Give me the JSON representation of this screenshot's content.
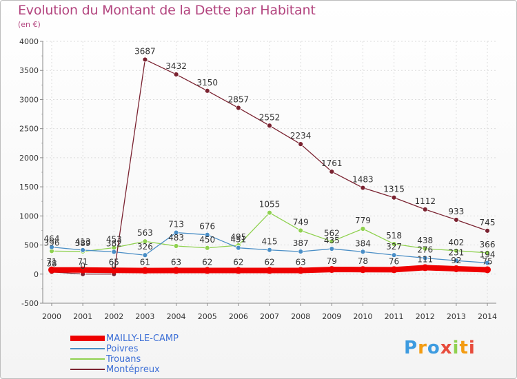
{
  "chart_data": {
    "type": "line",
    "title": "Evolution du Montant de la Dette par Habitant",
    "subtitle": "(en €)",
    "x": [
      "2000",
      "2001",
      "2002",
      "2003",
      "2004",
      "2005",
      "2006",
      "2007",
      "2008",
      "2009",
      "2010",
      "2011",
      "2012",
      "2013",
      "2014"
    ],
    "ylim": [
      -500,
      4000
    ],
    "yticks": [
      -500,
      0,
      500,
      1000,
      1500,
      2000,
      2500,
      3000,
      3500,
      4000
    ],
    "grid": true,
    "series": [
      {
        "name": "Trouans",
        "color": "#8fd14f",
        "width": 1.3,
        "values": [
          396,
          389,
          453,
          563,
          483,
          450,
          495,
          1055,
          749,
          562,
          779,
          518,
          438,
          402,
          366
        ],
        "labels": [
          "396",
          "389",
          "453",
          "563",
          "483",
          "450",
          "495",
          "1055",
          "749",
          "562",
          "779",
          "518",
          "438",
          "402",
          "366"
        ]
      },
      {
        "name": "Poivres",
        "color": "#4a8ec6",
        "width": 1.3,
        "values": [
          464,
          413,
          382,
          326,
          713,
          676,
          451,
          415,
          387,
          435,
          384,
          327,
          276,
          231,
          194
        ],
        "labels": [
          "464",
          "413",
          "382",
          "326",
          "713",
          "676",
          "451",
          "415",
          "387",
          "435",
          "384",
          "327",
          "276",
          "231",
          "194"
        ]
      },
      {
        "name": "Montépreux",
        "color": "#7a2230",
        "width": 1.3,
        "values": [
          38,
          0,
          0,
          3687,
          3432,
          3150,
          2857,
          2552,
          2234,
          1761,
          1483,
          1315,
          1112,
          933,
          745
        ],
        "labels": [
          "38",
          "0",
          "0",
          "3687",
          "3432",
          "3150",
          "2857",
          "2552",
          "2234",
          "1761",
          "1483",
          "1315",
          "1112",
          "933",
          "745"
        ]
      },
      {
        "name": "MAILLY-LE-CAMP",
        "color": "#ee0000",
        "width": 8,
        "values": [
          71,
          71,
          65,
          61,
          63,
          62,
          62,
          62,
          63,
          79,
          78,
          76,
          111,
          92,
          75
        ],
        "labels": [
          "71",
          "71",
          "65",
          "61",
          "63",
          "62",
          "62",
          "62",
          "63",
          "79",
          "78",
          "76",
          "111",
          "92",
          "75"
        ]
      }
    ]
  },
  "legend": [
    {
      "name": "MAILLY-LE-CAMP",
      "color": "#ee0000",
      "width": 8
    },
    {
      "name": "Poivres",
      "color": "#4a8ec6",
      "width": 2
    },
    {
      "name": "Trouans",
      "color": "#8fd14f",
      "width": 2
    },
    {
      "name": "Montépreux",
      "color": "#7a2230",
      "width": 2
    }
  ],
  "logo": {
    "letters": [
      "P",
      "r",
      "o",
      "x",
      "i",
      "t",
      "i"
    ],
    "colors": [
      "#3d9be0",
      "#f39c12",
      "#3d9be0",
      "#e74c3c",
      "#8fd14f",
      "#f39c12",
      "#e74c3c"
    ]
  }
}
